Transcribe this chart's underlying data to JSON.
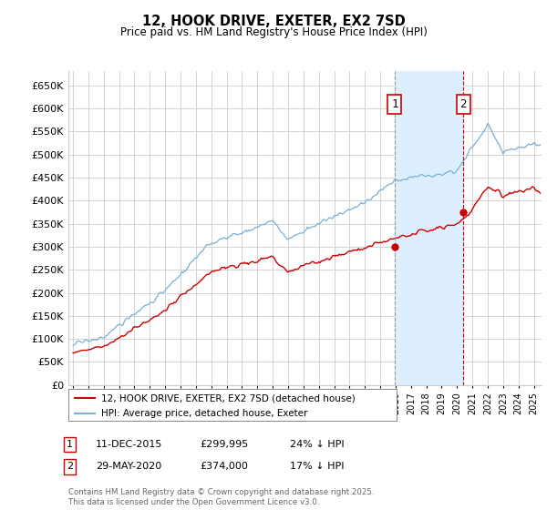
{
  "title": "12, HOOK DRIVE, EXETER, EX2 7SD",
  "subtitle": "Price paid vs. HM Land Registry's House Price Index (HPI)",
  "ylim": [
    0,
    680000
  ],
  "ytick_values": [
    0,
    50000,
    100000,
    150000,
    200000,
    250000,
    300000,
    350000,
    400000,
    450000,
    500000,
    550000,
    600000,
    650000
  ],
  "sale1_date": 2015.94,
  "sale1_price": 299995,
  "sale1_label": "1",
  "sale1_hpi_pct": "24% ↓ HPI",
  "sale1_date_str": "11-DEC-2015",
  "sale2_date": 2020.41,
  "sale2_price": 374000,
  "sale2_label": "2",
  "sale2_hpi_pct": "17% ↓ HPI",
  "sale2_date_str": "29-MAY-2020",
  "hpi_color": "#7bafd4",
  "price_color": "#cc0000",
  "shade_color": "#ddeeff",
  "dashed_line_color": "#cc0000",
  "sale1_vline_color": "#aaaaaa",
  "background_color": "#ffffff",
  "grid_color": "#cccccc",
  "legend_label_price": "12, HOOK DRIVE, EXETER, EX2 7SD (detached house)",
  "legend_label_hpi": "HPI: Average price, detached house, Exeter",
  "footer": "Contains HM Land Registry data © Crown copyright and database right 2025.\nThis data is licensed under the Open Government Licence v3.0.",
  "xlim_start": 1994.7,
  "xlim_end": 2025.5
}
